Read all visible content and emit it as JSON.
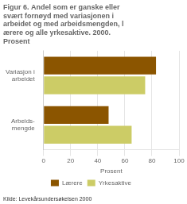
{
  "chart_data": {
    "type": "bar",
    "orientation": "horizontal",
    "title": "Figur 6. Andel som er ganske eller\nsvært fornøyd med variasjonen i\narbeidet og med arbeidsmengden, l\nærere og alle yrkesaktive. 2000.\nProsent",
    "categories": [
      "Variasjon i\narbeidet",
      "Arbeids-\nmengde"
    ],
    "series": [
      {
        "name": "Lærere",
        "color": "#8B5500",
        "values": [
          83,
          48
        ]
      },
      {
        "name": "Yrkesaktive",
        "color": "#CCCC66",
        "values": [
          75,
          65
        ]
      }
    ],
    "x_label": "Prosent",
    "xlim": [
      0,
      100
    ],
    "xticks": [
      0,
      20,
      40,
      60,
      80,
      100
    ],
    "grid": true,
    "legend": "bottom",
    "source": "Kilde: Levekårsundersøkelsen 2000"
  }
}
